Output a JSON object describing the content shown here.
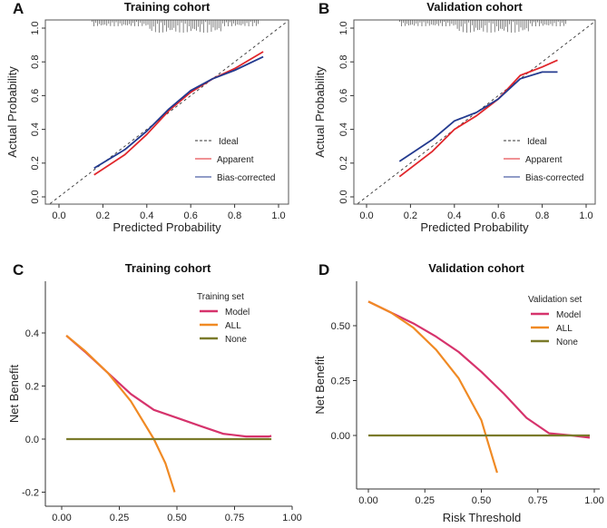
{
  "chart_data": [
    {
      "panel": "A",
      "type": "line",
      "title": "Training cohort",
      "xlabel": "Predicted Probability",
      "ylabel": "Actual Probability",
      "xlim": [
        0,
        1
      ],
      "ylim": [
        0,
        1
      ],
      "xticks": [
        "0.0",
        "0.2",
        "0.4",
        "0.6",
        "0.8",
        "1.0"
      ],
      "yticks": [
        "0.0",
        "0.2",
        "0.4",
        "0.6",
        "0.8",
        "1.0"
      ],
      "legend_position": "bottom-right",
      "series": [
        {
          "name": "Ideal",
          "color": "#333333",
          "dash": true,
          "x": [
            0,
            1
          ],
          "y": [
            0,
            1
          ]
        },
        {
          "name": "Apparent",
          "color": "#e0262b",
          "x": [
            0.16,
            0.3,
            0.4,
            0.5,
            0.6,
            0.7,
            0.8,
            0.93
          ],
          "y": [
            0.13,
            0.25,
            0.37,
            0.51,
            0.62,
            0.7,
            0.76,
            0.86
          ]
        },
        {
          "name": "Bias-corrected",
          "color": "#233a8f",
          "x": [
            0.16,
            0.3,
            0.4,
            0.5,
            0.6,
            0.7,
            0.8,
            0.93
          ],
          "y": [
            0.17,
            0.28,
            0.39,
            0.52,
            0.63,
            0.7,
            0.75,
            0.83
          ]
        }
      ]
    },
    {
      "panel": "B",
      "type": "line",
      "title": "Validation cohort",
      "xlabel": "Predicted Probability",
      "ylabel": "Actual Probability",
      "xlim": [
        0,
        1
      ],
      "ylim": [
        0,
        1
      ],
      "xticks": [
        "0.0",
        "0.2",
        "0.4",
        "0.6",
        "0.8",
        "1.0"
      ],
      "yticks": [
        "0.0",
        "0.2",
        "0.4",
        "0.6",
        "0.8",
        "1.0"
      ],
      "legend_position": "bottom-right",
      "series": [
        {
          "name": "Ideal",
          "color": "#333333",
          "dash": true,
          "x": [
            0,
            1
          ],
          "y": [
            0,
            1
          ]
        },
        {
          "name": "Apparent",
          "color": "#e0262b",
          "x": [
            0.15,
            0.3,
            0.4,
            0.5,
            0.6,
            0.7,
            0.8,
            0.87
          ],
          "y": [
            0.12,
            0.27,
            0.4,
            0.48,
            0.58,
            0.72,
            0.77,
            0.81
          ]
        },
        {
          "name": "Bias-corrected",
          "color": "#233a8f",
          "x": [
            0.15,
            0.3,
            0.4,
            0.5,
            0.6,
            0.7,
            0.8,
            0.87
          ],
          "y": [
            0.21,
            0.34,
            0.45,
            0.5,
            0.58,
            0.7,
            0.74,
            0.74
          ]
        }
      ]
    },
    {
      "panel": "C",
      "type": "line",
      "title": "Training cohort",
      "xlabel": "Risk Threshold",
      "ylabel": "Net Benefit",
      "legend_title": "Training set",
      "legend_position": "top-right",
      "xlim": [
        0,
        1
      ],
      "ylim": [
        -0.2,
        0.4
      ],
      "xticks": [
        "0.00",
        "0.25",
        "0.50",
        "0.75",
        "1.00"
      ],
      "yticks": [
        "-0.2",
        "0.0",
        "0.2",
        "0.4"
      ],
      "series": [
        {
          "name": "Model",
          "color": "#d6336c",
          "x": [
            0.02,
            0.1,
            0.2,
            0.3,
            0.4,
            0.5,
            0.6,
            0.7,
            0.8,
            0.9,
            0.91
          ],
          "y": [
            0.39,
            0.33,
            0.25,
            0.17,
            0.11,
            0.08,
            0.05,
            0.02,
            0.01,
            0.01,
            0.012
          ]
        },
        {
          "name": "ALL",
          "color": "#f08a24",
          "x": [
            0.02,
            0.1,
            0.2,
            0.3,
            0.4,
            0.45,
            0.49
          ],
          "y": [
            0.39,
            0.333,
            0.25,
            0.143,
            0.0,
            -0.091,
            -0.2
          ]
        },
        {
          "name": "None",
          "color": "#7a7a2a",
          "x": [
            0.02,
            0.91
          ],
          "y": [
            0,
            0
          ]
        }
      ]
    },
    {
      "panel": "D",
      "type": "line",
      "title": "Validation cohort",
      "xlabel": "Risk Threshold",
      "ylabel": "Net Benefit",
      "legend_title": "Validation set",
      "legend_position": "top-right",
      "xlim": [
        0,
        1
      ],
      "ylim": [
        -0.2,
        0.65
      ],
      "xticks": [
        "0.00",
        "0.25",
        "0.50",
        "0.75",
        "1.00"
      ],
      "yticks": [
        "0.00",
        "0.25",
        "0.50"
      ],
      "series": [
        {
          "name": "Model",
          "color": "#d6336c",
          "x": [
            0,
            0.1,
            0.2,
            0.3,
            0.4,
            0.5,
            0.6,
            0.7,
            0.8,
            0.9,
            0.98
          ],
          "y": [
            0.61,
            0.56,
            0.51,
            0.45,
            0.38,
            0.29,
            0.19,
            0.08,
            0.01,
            0.0,
            -0.01
          ]
        },
        {
          "name": "ALL",
          "color": "#f08a24",
          "x": [
            0,
            0.1,
            0.2,
            0.3,
            0.4,
            0.5,
            0.52,
            0.57
          ],
          "y": [
            0.61,
            0.56,
            0.49,
            0.39,
            0.26,
            0.07,
            0.0,
            -0.17
          ]
        },
        {
          "name": "None",
          "color": "#7a7a2a",
          "x": [
            0,
            0.98
          ],
          "y": [
            0,
            0
          ]
        }
      ]
    }
  ]
}
